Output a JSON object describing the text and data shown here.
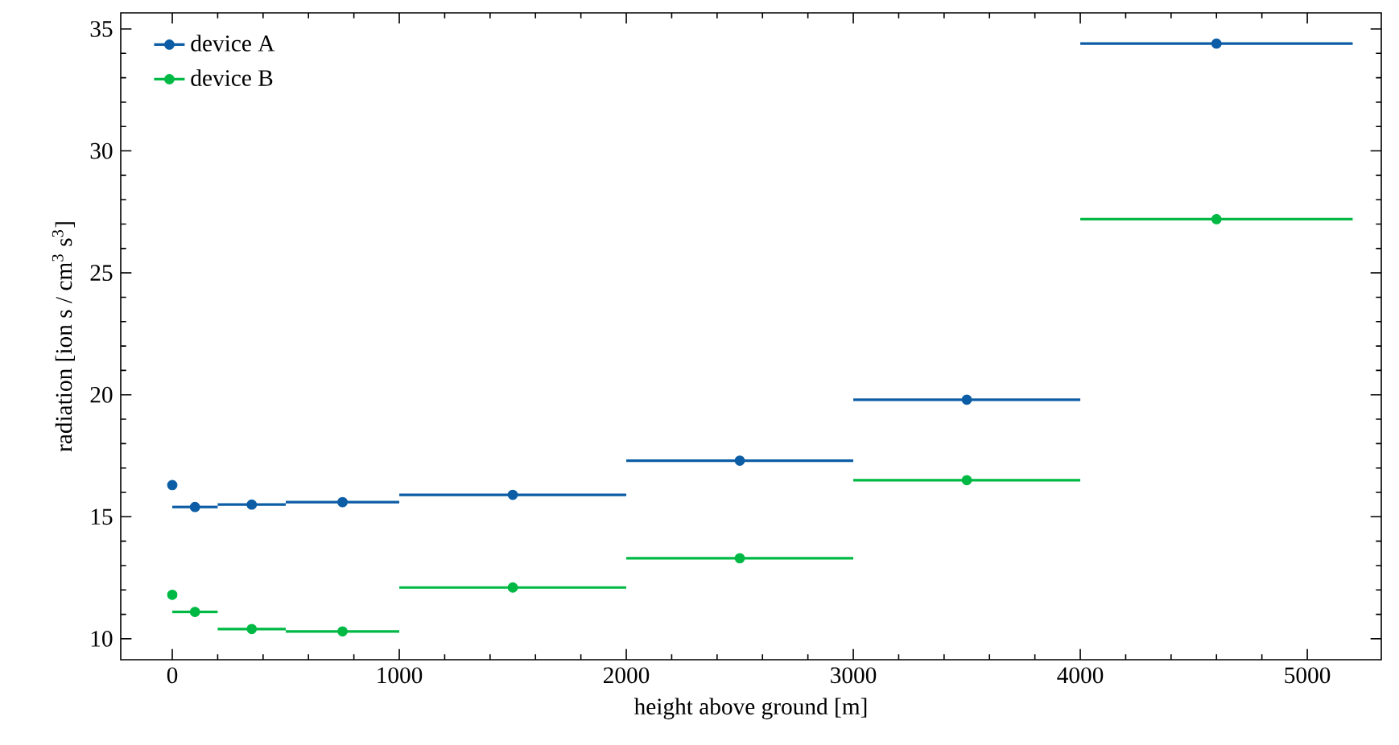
{
  "chart_data": {
    "type": "scatter",
    "xlabel": "height above ground [m]",
    "ylabel": "radiation [ion s / cm$^{3}$ s$^{3}$]",
    "x": [
      0,
      100,
      350,
      750,
      1500,
      2500,
      3500,
      4600
    ],
    "series": [
      {
        "name": "device A",
        "color": "#0c5da5",
        "values": [
          16.3,
          15.4,
          15.5,
          15.6,
          15.9,
          17.3,
          19.8,
          34.4
        ],
        "xerrors": [
          null,
          100,
          150,
          250,
          500,
          500,
          500,
          600
        ]
      },
      {
        "name": "device B",
        "color": "#00b945",
        "values": [
          11.8,
          11.1,
          10.4,
          10.3,
          12.1,
          13.3,
          16.5,
          27.2
        ],
        "xerrors": [
          null,
          100,
          150,
          250,
          500,
          500,
          500,
          600
        ]
      }
    ],
    "xlim": [
      -227,
      5326
    ],
    "ylim": [
      9.14,
      35.66
    ],
    "xticks": [
      0,
      1000,
      2000,
      3000,
      4000,
      5000
    ],
    "yticks": [
      10,
      15,
      20,
      25,
      30,
      35
    ],
    "legend": "top left",
    "marker": "circle"
  }
}
